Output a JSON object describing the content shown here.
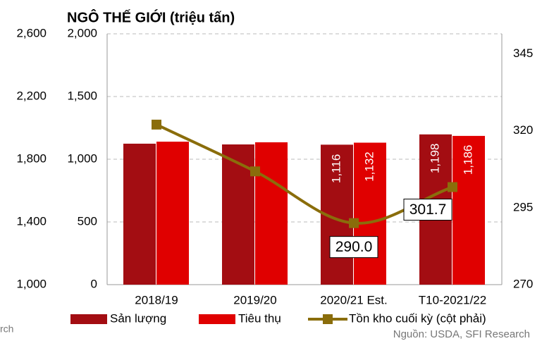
{
  "chart_data": {
    "type": "bar_line",
    "title": "NGÔ THẾ GIỚI (triệu tấn)",
    "categories": [
      "2018/19",
      "2019/20",
      "2020/21 Est.",
      "T10-2021/22"
    ],
    "series": [
      {
        "name": "Sản lượng",
        "color": "#a30d12",
        "type": "bar",
        "values": [
          1124,
          1118,
          1116,
          1198
        ],
        "value_labels": [
          null,
          null,
          "1,116",
          "1,198"
        ]
      },
      {
        "name": "Tiêu thụ",
        "color": "#e00000",
        "type": "bar",
        "values": [
          1140,
          1135,
          1132,
          1186
        ],
        "value_labels": [
          null,
          null,
          "1,132",
          "1,186"
        ]
      },
      {
        "name": "Tồn kho cuối kỳ (cột phải)",
        "color": "#8a6d0b",
        "type": "line",
        "axis": "y2",
        "values": [
          322.0,
          306.8,
          290.0,
          301.7
        ],
        "value_labels": [
          null,
          null,
          "290.0",
          "301.7"
        ]
      }
    ],
    "ylim": [
      0,
      2000
    ],
    "yticks": [
      0,
      500,
      {
        "value": 1000,
        "label": "1,000"
      },
      {
        "value": 1500,
        "label": "1,500"
      },
      {
        "value": 2000,
        "label": "2,000"
      }
    ],
    "y3lim": [
      1000,
      2600
    ],
    "y3ticks": [
      {
        "value": 1000,
        "label": "1,000"
      },
      {
        "value": 1400,
        "label": "1,400"
      },
      {
        "value": 1800,
        "label": "1,800"
      },
      {
        "value": 2200,
        "label": "2,200"
      },
      {
        "value": 2600,
        "label": "2,600"
      }
    ],
    "y2lim": [
      270,
      351.5
    ],
    "y2ticks": [
      270,
      295,
      320,
      345
    ],
    "grid": true,
    "legend": "bottom",
    "source": "Nguồn: USDA, SFI Research",
    "fragment": "rch"
  }
}
